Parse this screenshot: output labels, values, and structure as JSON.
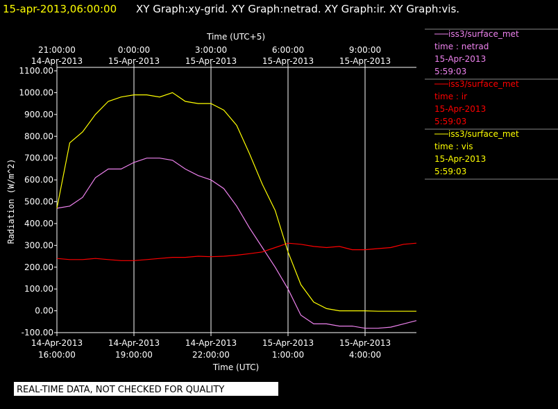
{
  "chart_data": {
    "type": "line",
    "header_time": "15-apr-2013,06:00:00",
    "title": "XY Graph:xy-grid.  XY Graph:netrad.  XY Graph:ir.  XY Graph:vis.",
    "xlabel": "Time (UTC)",
    "x2label": "Time (UTC+5)",
    "ylabel": "Radiation (W/m^2)",
    "notice": "REAL-TIME DATA, NOT CHECKED FOR QUALITY",
    "grid": "x",
    "x": [
      "2013-04-14 16:00:00",
      "2013-04-14 16:30:00",
      "2013-04-14 17:00:00",
      "2013-04-14 17:30:00",
      "2013-04-14 18:00:00",
      "2013-04-14 18:30:00",
      "2013-04-14 19:00:00",
      "2013-04-14 19:30:00",
      "2013-04-14 20:00:00",
      "2013-04-14 20:30:00",
      "2013-04-14 21:00:00",
      "2013-04-14 21:30:00",
      "2013-04-14 22:00:00",
      "2013-04-14 22:30:00",
      "2013-04-14 23:00:00",
      "2013-04-14 23:30:00",
      "2013-04-15 00:00:00",
      "2013-04-15 00:30:00",
      "2013-04-15 01:00:00",
      "2013-04-15 01:30:00",
      "2013-04-15 02:00:00",
      "2013-04-15 02:30:00",
      "2013-04-15 03:00:00",
      "2013-04-15 03:30:00",
      "2013-04-15 04:00:00",
      "2013-04-15 04:30:00",
      "2013-04-15 05:00:00",
      "2013-04-15 05:30:00",
      "2013-04-15 06:00:00"
    ],
    "xlim": [
      "2013-04-14 16:00:00",
      "2013-04-15 06:00:00"
    ],
    "xticks": [
      {
        "value": "2013-04-14 16:00:00",
        "label": [
          "14-Apr-2013",
          "16:00:00"
        ]
      },
      {
        "value": "2013-04-14 19:00:00",
        "label": [
          "14-Apr-2013",
          "19:00:00"
        ]
      },
      {
        "value": "2013-04-14 22:00:00",
        "label": [
          "14-Apr-2013",
          "22:00:00"
        ]
      },
      {
        "value": "2013-04-15 01:00:00",
        "label": [
          "15-Apr-2013",
          "1:00:00"
        ]
      },
      {
        "value": "2013-04-15 04:00:00",
        "label": [
          "15-Apr-2013",
          "4:00:00"
        ]
      }
    ],
    "x2ticks": [
      {
        "value": "2013-04-14 16:00:00",
        "label": [
          "21:00:00",
          "14-Apr-2013"
        ]
      },
      {
        "value": "2013-04-14 19:00:00",
        "label": [
          "0:00:00",
          "15-Apr-2013"
        ]
      },
      {
        "value": "2013-04-14 22:00:00",
        "label": [
          "3:00:00",
          "15-Apr-2013"
        ]
      },
      {
        "value": "2013-04-15 01:00:00",
        "label": [
          "6:00:00",
          "15-Apr-2013"
        ]
      },
      {
        "value": "2013-04-15 04:00:00",
        "label": [
          "9:00:00",
          "15-Apr-2013"
        ]
      }
    ],
    "ylim": [
      -100,
      1100
    ],
    "yticks": [
      {
        "value": -100,
        "label": "-100.00"
      },
      {
        "value": 0,
        "label": "0.00"
      },
      {
        "value": 100,
        "label": "100.00"
      },
      {
        "value": 200,
        "label": "200.00"
      },
      {
        "value": 300,
        "label": "300.00"
      },
      {
        "value": 400,
        "label": "400.00"
      },
      {
        "value": 500,
        "label": "500.00"
      },
      {
        "value": 600,
        "label": "600.00"
      },
      {
        "value": 700,
        "label": "700.00"
      },
      {
        "value": 800,
        "label": "800.00"
      },
      {
        "value": 900,
        "label": "900.00"
      },
      {
        "value": 1000,
        "label": "1000.00"
      },
      {
        "value": 1100,
        "label": "1100.00"
      }
    ],
    "series": [
      {
        "name": "iss3/surface_met",
        "label": "time : netrad",
        "date": "15-Apr-2013",
        "time": "5:59:03",
        "color": "#ee82ee",
        "values": [
          470,
          480,
          520,
          610,
          650,
          650,
          680,
          700,
          700,
          690,
          650,
          620,
          600,
          560,
          480,
          380,
          290,
          200,
          100,
          -20,
          -60,
          -60,
          -70,
          -70,
          -80,
          -80,
          -75,
          -60,
          -45
        ]
      },
      {
        "name": "iss3/surface_met",
        "label": "time : ir",
        "date": "15-Apr-2013",
        "time": "5:59:03",
        "color": "#ff0000",
        "values": [
          240,
          235,
          235,
          240,
          235,
          230,
          230,
          235,
          240,
          245,
          245,
          250,
          248,
          250,
          255,
          262,
          270,
          290,
          310,
          305,
          295,
          290,
          295,
          280,
          280,
          285,
          290,
          305,
          310
        ]
      },
      {
        "name": "iss3/surface_met",
        "label": "time : vis",
        "date": "15-Apr-2013",
        "time": "5:59:03",
        "color": "#ffff00",
        "values": [
          470,
          770,
          820,
          900,
          960,
          980,
          990,
          990,
          980,
          1000,
          960,
          950,
          950,
          920,
          850,
          720,
          580,
          460,
          270,
          120,
          40,
          10,
          0,
          0,
          0,
          -2,
          -2,
          -2,
          -2
        ]
      }
    ]
  }
}
